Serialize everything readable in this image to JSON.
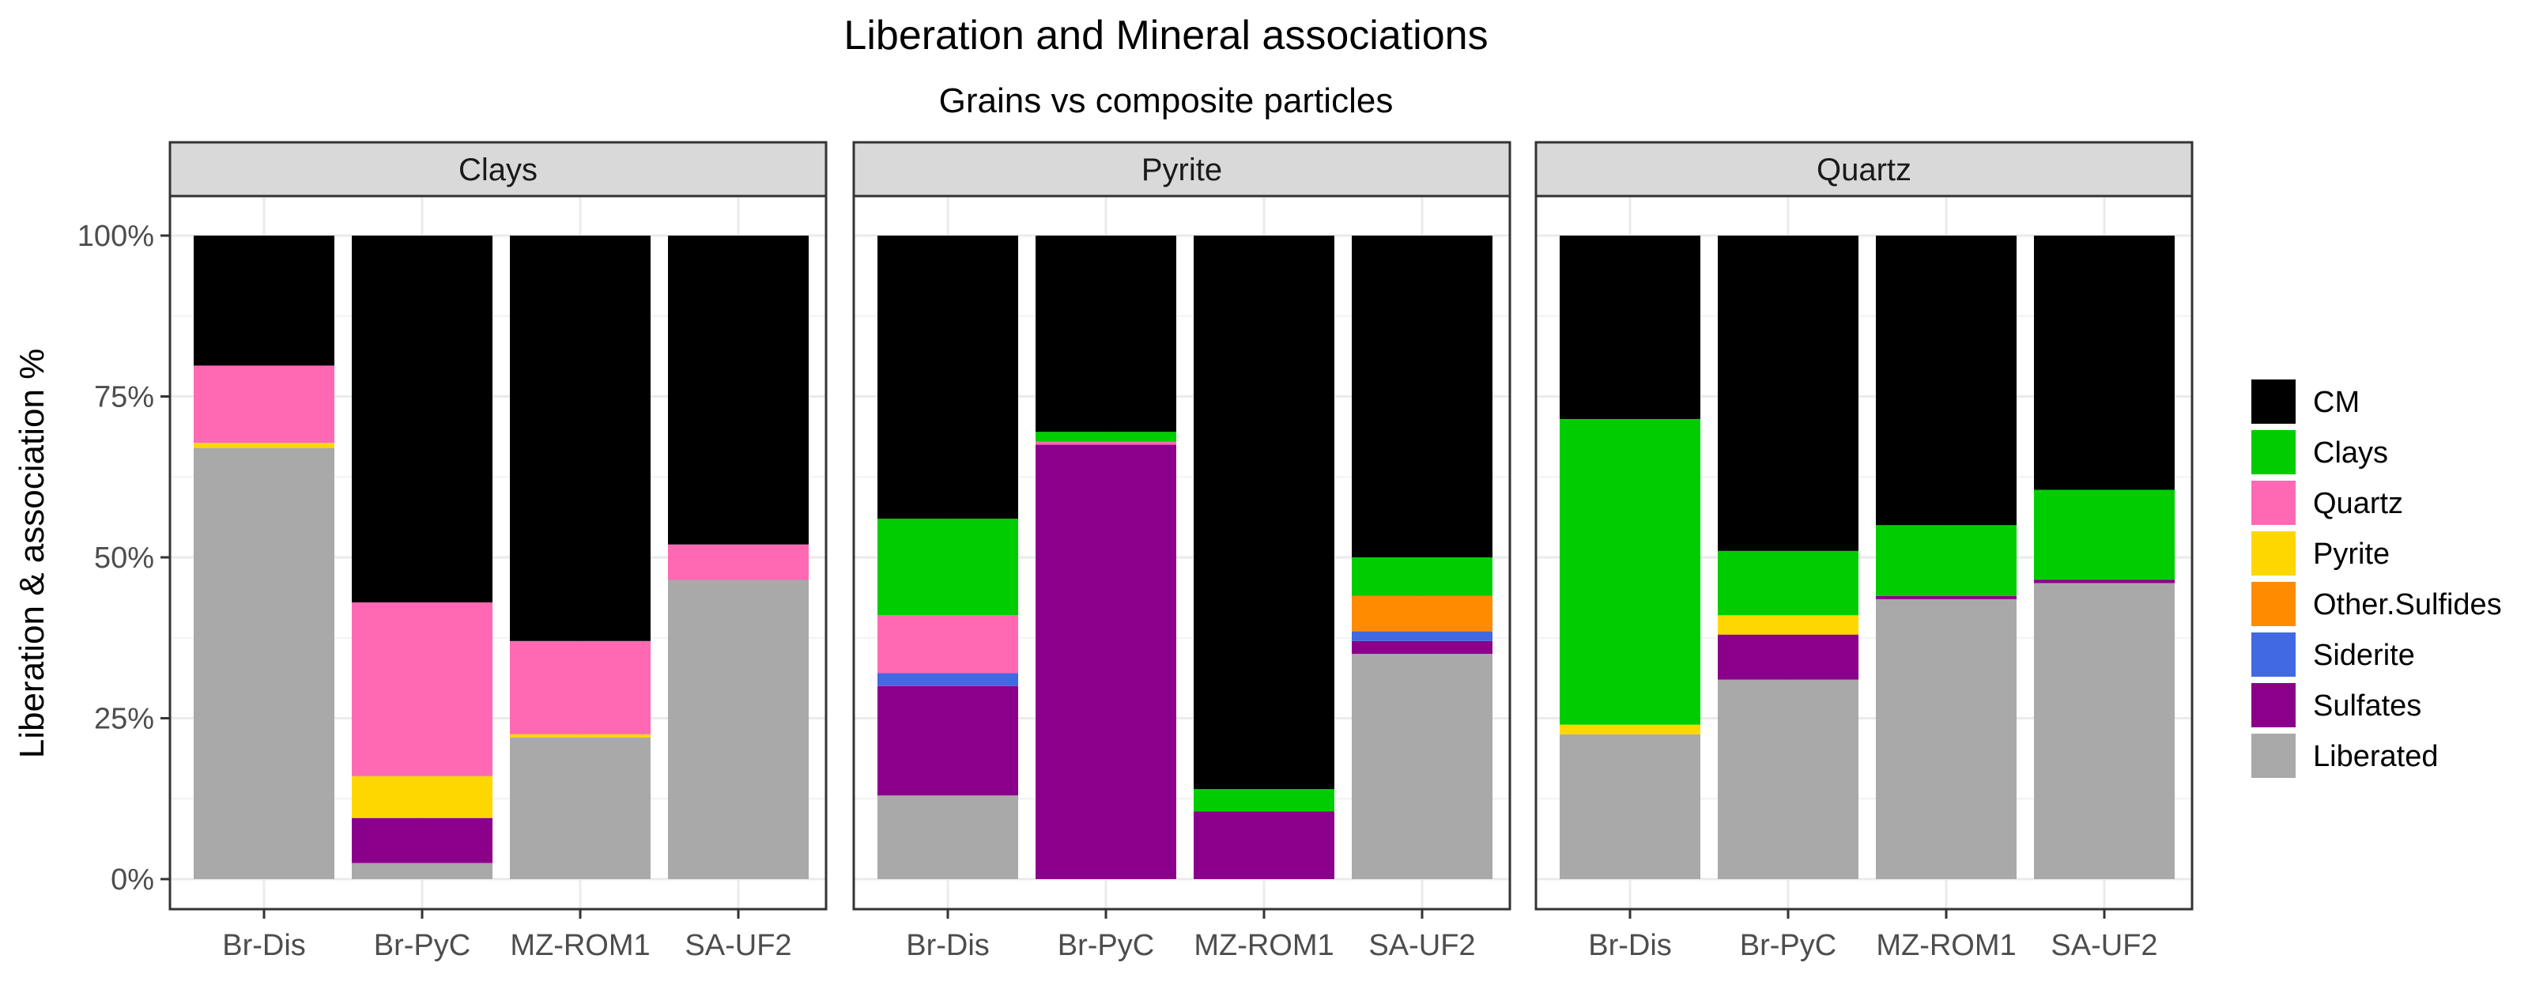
{
  "chart_data": {
    "type": "bar",
    "stacked": true,
    "title": "Liberation and Mineral associations",
    "subtitle": "Grains vs composite particles",
    "xlabel": "",
    "ylabel": "Liberation & association %",
    "ylim": [
      0,
      100
    ],
    "y_ticks": [
      "0%",
      "25%",
      "50%",
      "75%",
      "100%"
    ],
    "y_tick_values": [
      0,
      25,
      50,
      75,
      100
    ],
    "categories": [
      "Br-Dis",
      "Br-PyC",
      "MZ-ROM1",
      "SA-UF2"
    ],
    "legend": {
      "position": "right",
      "items": [
        {
          "name": "CM",
          "color": "#000000"
        },
        {
          "name": "Clays",
          "color": "#00cd00"
        },
        {
          "name": "Quartz",
          "color": "#ff69b4"
        },
        {
          "name": "Pyrite",
          "color": "#ffd700"
        },
        {
          "name": "Other.Sulfides",
          "color": "#ff8c00"
        },
        {
          "name": "Siderite",
          "color": "#4169e1"
        },
        {
          "name": "Sulfates",
          "color": "#8b008b"
        },
        {
          "name": "Liberated",
          "color": "#a9a9a9"
        }
      ]
    },
    "stack_order": [
      "Liberated",
      "Sulfates",
      "Siderite",
      "Other.Sulfides",
      "Pyrite",
      "Quartz",
      "Clays",
      "CM"
    ],
    "panels": [
      {
        "strip": "Clays",
        "bars": [
          {
            "category": "Br-Dis",
            "values": {
              "Liberated": 67,
              "Sulfates": 0,
              "Siderite": 0,
              "Other.Sulfides": 0,
              "Pyrite": 0.8,
              "Quartz": 12,
              "Clays": 0,
              "CM": 20.2
            }
          },
          {
            "category": "Br-PyC",
            "values": {
              "Liberated": 2.5,
              "Sulfates": 7,
              "Siderite": 0,
              "Other.Sulfides": 0,
              "Pyrite": 6.5,
              "Quartz": 27,
              "Clays": 0,
              "CM": 57
            }
          },
          {
            "category": "MZ-ROM1",
            "values": {
              "Liberated": 22,
              "Sulfates": 0,
              "Siderite": 0,
              "Other.Sulfides": 0,
              "Pyrite": 0.5,
              "Quartz": 14.5,
              "Clays": 0,
              "CM": 63
            }
          },
          {
            "category": "SA-UF2",
            "values": {
              "Liberated": 46.5,
              "Sulfates": 0,
              "Siderite": 0,
              "Other.Sulfides": 0,
              "Pyrite": 0,
              "Quartz": 5.5,
              "Clays": 0,
              "CM": 48
            }
          }
        ]
      },
      {
        "strip": "Pyrite",
        "bars": [
          {
            "category": "Br-Dis",
            "values": {
              "Liberated": 13,
              "Sulfates": 17,
              "Siderite": 2,
              "Other.Sulfides": 0,
              "Pyrite": 0,
              "Quartz": 9,
              "Clays": 15,
              "CM": 44
            }
          },
          {
            "category": "Br-PyC",
            "values": {
              "Liberated": 0,
              "Sulfates": 67.5,
              "Siderite": 0,
              "Other.Sulfides": 0,
              "Pyrite": 0,
              "Quartz": 0.5,
              "Clays": 1.5,
              "CM": 30.5
            }
          },
          {
            "category": "MZ-ROM1",
            "values": {
              "Liberated": 0,
              "Sulfates": 10.5,
              "Siderite": 0,
              "Other.Sulfides": 0,
              "Pyrite": 0,
              "Quartz": 0,
              "Clays": 3.5,
              "CM": 86
            }
          },
          {
            "category": "SA-UF2",
            "values": {
              "Liberated": 35,
              "Sulfates": 2,
              "Siderite": 1.5,
              "Other.Sulfides": 5.5,
              "Pyrite": 0,
              "Quartz": 0,
              "Clays": 6,
              "CM": 50
            }
          }
        ]
      },
      {
        "strip": "Quartz",
        "bars": [
          {
            "category": "Br-Dis",
            "values": {
              "Liberated": 22.5,
              "Sulfates": 0,
              "Siderite": 0,
              "Other.Sulfides": 0,
              "Pyrite": 1.5,
              "Quartz": 0,
              "Clays": 47.5,
              "CM": 28.5
            }
          },
          {
            "category": "Br-PyC",
            "values": {
              "Liberated": 31,
              "Sulfates": 7,
              "Siderite": 0,
              "Other.Sulfides": 0,
              "Pyrite": 3,
              "Quartz": 0,
              "Clays": 10,
              "CM": 49
            }
          },
          {
            "category": "MZ-ROM1",
            "values": {
              "Liberated": 43.5,
              "Sulfates": 0.5,
              "Siderite": 0,
              "Other.Sulfides": 0,
              "Pyrite": 0,
              "Quartz": 0,
              "Clays": 11,
              "CM": 45
            }
          },
          {
            "category": "SA-UF2",
            "values": {
              "Liberated": 46,
              "Sulfates": 0.5,
              "Siderite": 0,
              "Other.Sulfides": 0,
              "Pyrite": 0,
              "Quartz": 0,
              "Clays": 14,
              "CM": 39.5
            }
          }
        ]
      }
    ]
  }
}
